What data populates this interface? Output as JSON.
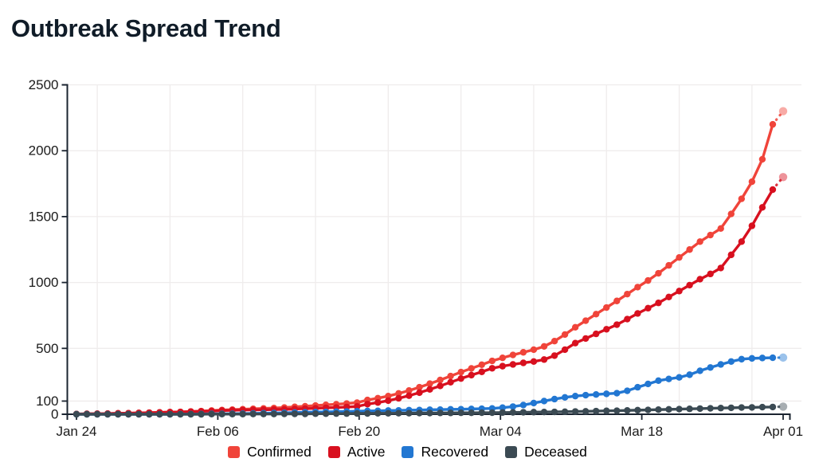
{
  "page": {
    "background": "#ffffff"
  },
  "chart_data": {
    "type": "line",
    "title": "Outbreak Spread Trend",
    "grid": true,
    "legend_position": "bottom",
    "last_point_provisional": true,
    "x": {
      "dates": [
        "Jan 24",
        "Jan 25",
        "Jan 26",
        "Jan 27",
        "Jan 28",
        "Jan 29",
        "Jan 30",
        "Jan 31",
        "Feb 01",
        "Feb 02",
        "Feb 03",
        "Feb 04",
        "Feb 05",
        "Feb 06",
        "Feb 07",
        "Feb 08",
        "Feb 09",
        "Feb 10",
        "Feb 11",
        "Feb 12",
        "Feb 13",
        "Feb 14",
        "Feb 15",
        "Feb 16",
        "Feb 17",
        "Feb 18",
        "Feb 19",
        "Feb 20",
        "Feb 21",
        "Feb 22",
        "Feb 23",
        "Feb 24",
        "Feb 25",
        "Feb 26",
        "Feb 27",
        "Feb 28",
        "Feb 29",
        "Mar 01",
        "Mar 02",
        "Mar 03",
        "Mar 04",
        "Mar 05",
        "Mar 06",
        "Mar 07",
        "Mar 08",
        "Mar 09",
        "Mar 10",
        "Mar 11",
        "Mar 12",
        "Mar 13",
        "Mar 14",
        "Mar 15",
        "Mar 16",
        "Mar 17",
        "Mar 18",
        "Mar 19",
        "Mar 20",
        "Mar 21",
        "Mar 22",
        "Mar 23",
        "Mar 24",
        "Mar 25",
        "Mar 26",
        "Mar 27",
        "Mar 28",
        "Mar 29",
        "Mar 30",
        "Mar 31",
        "Apr 01"
      ],
      "tick_labels": [
        "Jan 24",
        "Feb 06",
        "Feb 20",
        "Mar 04",
        "Mar 18",
        "Apr 01"
      ],
      "tick_indices": [
        0,
        13,
        27,
        40,
        54,
        68
      ],
      "weekly_gridline_indices": [
        2,
        9,
        16,
        23,
        30,
        37,
        44,
        51,
        58,
        65
      ]
    },
    "y": {
      "range": [
        0,
        2500
      ],
      "tick_values": [
        0,
        100,
        500,
        1000,
        1500,
        2000,
        2500
      ],
      "tick_labels": [
        "0",
        "100",
        "500",
        "1000",
        "1500",
        "2000",
        "2500"
      ],
      "gridline_values": [
        100,
        500,
        1000,
        1500,
        2000,
        2500
      ]
    },
    "series": [
      {
        "name": "Confirmed",
        "color": "#f0443a",
        "values": [
          2,
          3,
          4,
          5,
          7,
          8,
          10,
          12,
          14,
          16,
          18,
          21,
          24,
          28,
          32,
          35,
          38,
          41,
          44,
          47,
          51,
          56,
          61,
          66,
          71,
          76,
          81,
          88,
          108,
          122,
          138,
          158,
          180,
          205,
          232,
          260,
          290,
          320,
          348,
          376,
          405,
          428,
          450,
          470,
          490,
          515,
          555,
          605,
          660,
          710,
          760,
          810,
          860,
          912,
          965,
          1015,
          1070,
          1130,
          1190,
          1250,
          1310,
          1360,
          1410,
          1520,
          1635,
          1765,
          1935,
          2200,
          2300
        ]
      },
      {
        "name": "Active",
        "color": "#d8101f",
        "values": [
          2,
          3,
          4,
          5,
          7,
          8,
          10,
          12,
          14,
          16,
          17,
          20,
          22,
          24,
          28,
          30,
          32,
          33,
          34,
          36,
          37,
          40,
          43,
          45,
          49,
          51,
          55,
          59,
          77,
          89,
          103,
          121,
          141,
          164,
          189,
          215,
          243,
          271,
          297,
          322,
          349,
          365,
          378,
          390,
          400,
          415,
          445,
          490,
          540,
          575,
          610,
          645,
          680,
          722,
          765,
          805,
          845,
          890,
          935,
          980,
          1025,
          1065,
          1110,
          1210,
          1310,
          1430,
          1570,
          1705,
          1800
        ]
      },
      {
        "name": "Recovered",
        "color": "#2277d2",
        "values": [
          0,
          0,
          0,
          0,
          0,
          0,
          0,
          0,
          0,
          0,
          1,
          1,
          2,
          3,
          3,
          4,
          5,
          6,
          8,
          9,
          11,
          13,
          15,
          17,
          18,
          20,
          21,
          23,
          25,
          26,
          28,
          29,
          31,
          32,
          34,
          35,
          37,
          38,
          40,
          42,
          44,
          50,
          58,
          70,
          85,
          100,
          115,
          128,
          138,
          145,
          150,
          155,
          160,
          178,
          205,
          230,
          255,
          268,
          280,
          300,
          330,
          355,
          378,
          400,
          418,
          424,
          427,
          429,
          430
        ]
      },
      {
        "name": "Deceased",
        "color": "#3b4a53",
        "values": [
          0,
          0,
          0,
          0,
          0,
          0,
          0,
          0,
          0,
          0,
          0,
          0,
          0,
          1,
          1,
          1,
          1,
          2,
          2,
          2,
          3,
          3,
          3,
          4,
          4,
          5,
          5,
          6,
          6,
          7,
          7,
          8,
          8,
          9,
          9,
          10,
          10,
          11,
          11,
          12,
          12,
          13,
          14,
          15,
          16,
          17,
          18,
          19,
          21,
          22,
          24,
          26,
          27,
          29,
          31,
          33,
          35,
          37,
          39,
          41,
          43,
          45,
          47,
          49,
          51,
          52,
          54,
          55,
          58
        ]
      }
    ],
    "colors": {
      "axis": "#1b2430",
      "tick_label": "#1b1b1b",
      "gridline": "#efecec",
      "title": "#101c28"
    }
  }
}
